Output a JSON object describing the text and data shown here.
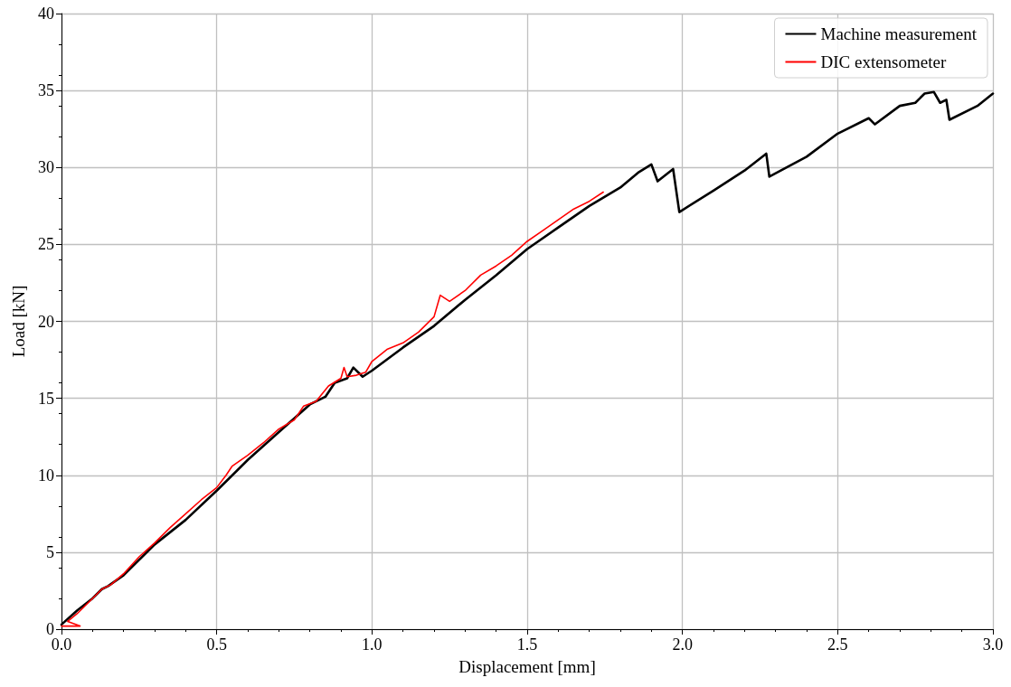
{
  "chart_data": {
    "type": "line",
    "xlabel": "Displacement [mm]",
    "ylabel": "Load [kN]",
    "xlim": [
      0,
      3
    ],
    "xticks": [
      {
        "value": 0,
        "label": "0.0"
      },
      0.5,
      {
        "value": 1,
        "label": "1.0"
      },
      1.5,
      {
        "value": 2,
        "label": "2.0"
      },
      2.5,
      {
        "value": 3,
        "label": "3.0"
      }
    ],
    "ylim": [
      0,
      40
    ],
    "yticks": [
      0,
      5,
      10,
      15,
      20,
      25,
      30,
      35,
      40
    ],
    "grid": true,
    "legend": "top right",
    "marker": "none",
    "line_style": "solid",
    "series": [
      {
        "name": "Machine measurement",
        "color": "#000000",
        "x": [
          0,
          0.05,
          0.1,
          0.13,
          0.15,
          0.2,
          0.3,
          0.4,
          0.5,
          0.6,
          0.7,
          0.8,
          0.85,
          0.88,
          0.92,
          0.94,
          0.97,
          1.0,
          1.1,
          1.2,
          1.3,
          1.4,
          1.5,
          1.6,
          1.7,
          1.8,
          1.86,
          1.9,
          1.92,
          1.97,
          1.99,
          2.1,
          2.2,
          2.27,
          2.28,
          2.4,
          2.5,
          2.6,
          2.62,
          2.7,
          2.75,
          2.78,
          2.81,
          2.83,
          2.85,
          2.86,
          2.95,
          3.0
        ],
        "values": [
          0.3,
          1.2,
          2.0,
          2.6,
          2.8,
          3.5,
          5.5,
          7.1,
          9.0,
          11.0,
          12.8,
          14.6,
          15.1,
          16.0,
          16.3,
          17.0,
          16.4,
          16.8,
          18.3,
          19.7,
          21.4,
          23.0,
          24.7,
          26.1,
          27.5,
          28.7,
          29.7,
          30.2,
          29.1,
          29.9,
          27.1,
          28.5,
          29.8,
          30.9,
          29.4,
          30.7,
          32.2,
          33.2,
          32.8,
          34.0,
          34.2,
          34.8,
          34.9,
          34.2,
          34.4,
          33.1,
          34.0,
          34.8
        ]
      },
      {
        "name": "DIC extensometer",
        "color": "#ff0000",
        "x": [
          0.0,
          0.06,
          0.02,
          0.05,
          0.1,
          0.13,
          0.16,
          0.2,
          0.25,
          0.3,
          0.35,
          0.4,
          0.45,
          0.5,
          0.53,
          0.55,
          0.6,
          0.65,
          0.7,
          0.75,
          0.78,
          0.82,
          0.86,
          0.9,
          0.91,
          0.92,
          0.95,
          0.98,
          1.0,
          1.05,
          1.1,
          1.15,
          1.2,
          1.22,
          1.25,
          1.3,
          1.35,
          1.4,
          1.45,
          1.5,
          1.55,
          1.6,
          1.65,
          1.7,
          1.745
        ],
        "values": [
          0.2,
          0.2,
          0.5,
          1.0,
          2.0,
          2.6,
          2.9,
          3.6,
          4.7,
          5.6,
          6.6,
          7.5,
          8.4,
          9.2,
          10.0,
          10.6,
          11.3,
          12.1,
          13.0,
          13.6,
          14.5,
          14.8,
          15.8,
          16.3,
          17.0,
          16.4,
          16.5,
          16.7,
          17.4,
          18.2,
          18.6,
          19.3,
          20.3,
          21.7,
          21.3,
          22.0,
          23.0,
          23.6,
          24.3,
          25.2,
          25.9,
          26.6,
          27.3,
          27.8,
          28.4
        ]
      }
    ]
  }
}
